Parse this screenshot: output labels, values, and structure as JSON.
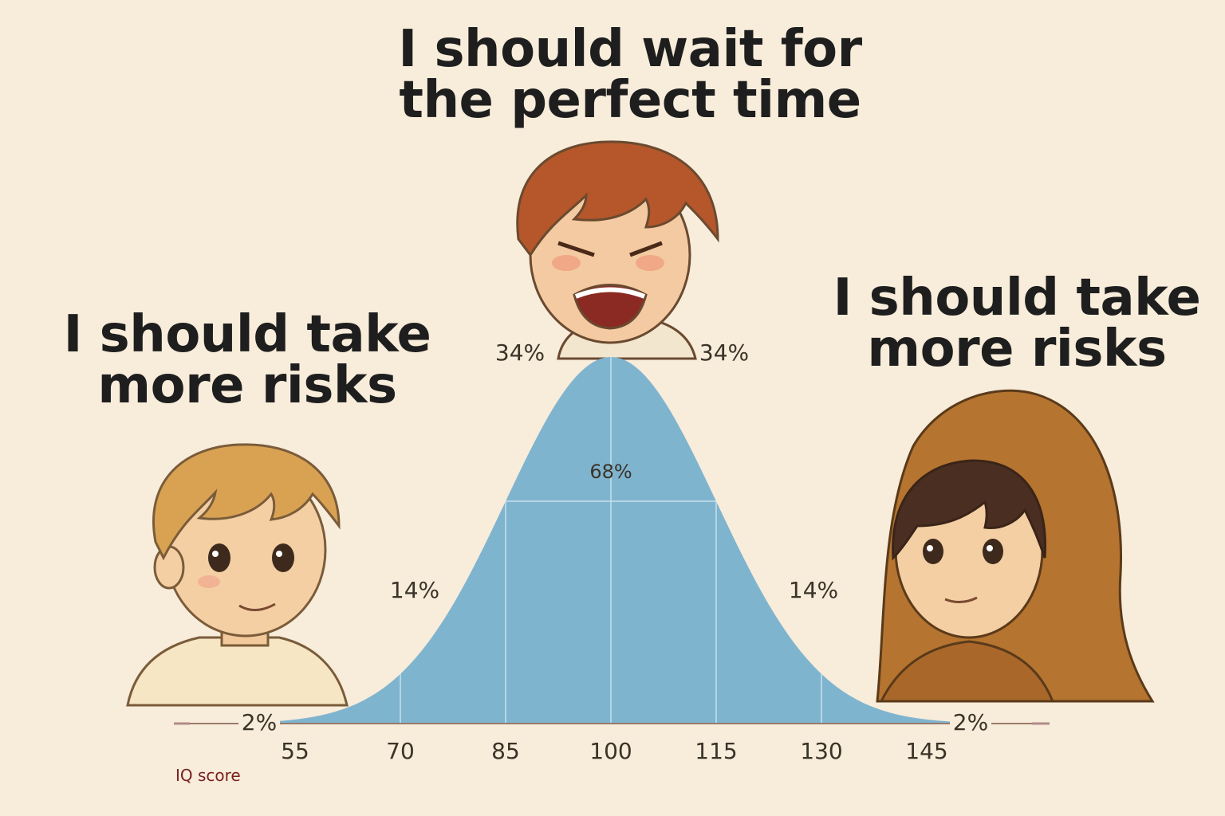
{
  "captions": {
    "top": [
      "I should wait for",
      "the perfect time"
    ],
    "left": [
      "I should take",
      "more risks"
    ],
    "right": [
      "I should take",
      "more risks"
    ]
  },
  "characters": {
    "left": "smiling blond child",
    "center": "crying angry boy",
    "right": "hooded girl"
  },
  "colors": {
    "background": "#f8ecda",
    "curve_fill": "#7fb4cf",
    "divider": "#c9e0ec",
    "axis": "#b08c8a",
    "text": "#3a3328",
    "axis_label": "#7a2020"
  },
  "chart_data": {
    "type": "area",
    "title": "",
    "xlabel": "IQ score",
    "ylabel": "",
    "x_ticks": [
      55,
      70,
      85,
      100,
      115,
      130,
      145
    ],
    "x_tick_labels": [
      "55",
      "70",
      "85",
      "100",
      "115",
      "130",
      "145"
    ],
    "distribution": {
      "kind": "normal",
      "mean": 100,
      "sd": 15
    },
    "band_boundaries": [
      70,
      85,
      100,
      115,
      130
    ],
    "band_labels": [
      {
        "text": "2%",
        "range": [
          40,
          55
        ]
      },
      {
        "text": "14%",
        "range": [
          55,
          85
        ]
      },
      {
        "text": "34%",
        "range": [
          85,
          100
        ]
      },
      {
        "text": "68%",
        "range": [
          85,
          115
        ]
      },
      {
        "text": "34%",
        "range": [
          100,
          115
        ]
      },
      {
        "text": "14%",
        "range": [
          115,
          145
        ]
      },
      {
        "text": "2%",
        "range": [
          145,
          160
        ]
      }
    ],
    "grid": false,
    "legend": "none"
  }
}
